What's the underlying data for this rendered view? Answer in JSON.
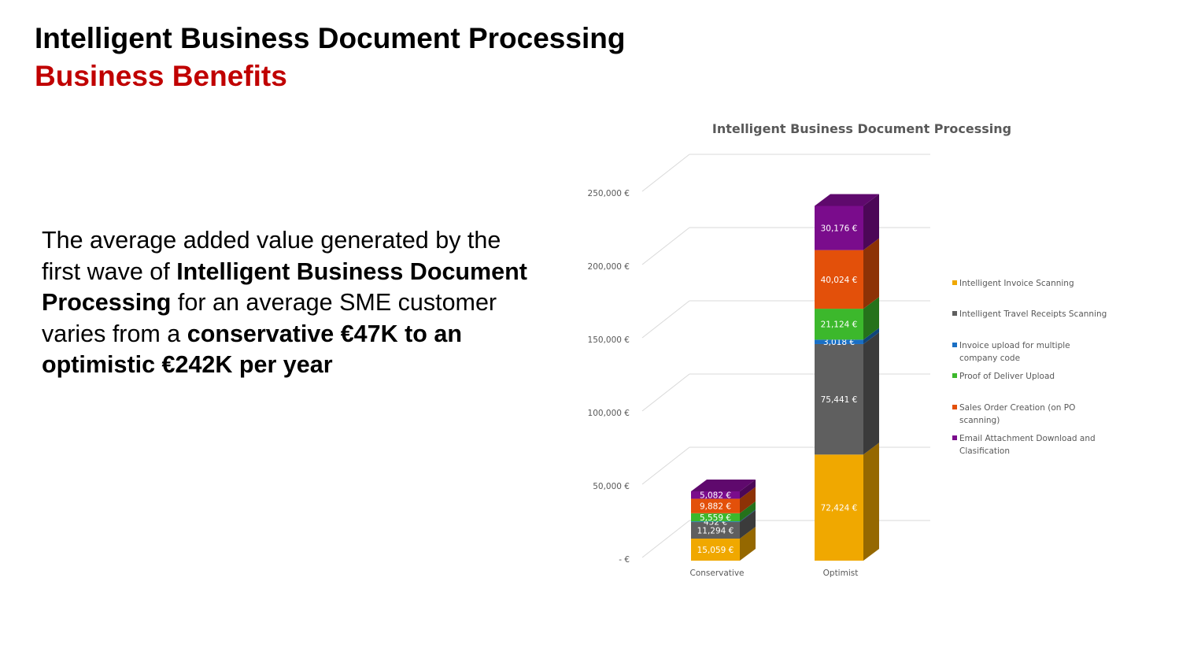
{
  "header": {
    "title": "Intelligent Business Document Processing",
    "subtitle": "Business Benefits"
  },
  "body": {
    "p1": "The average added value generated by the first wave of ",
    "b1": "Intelligent Business Document Processing",
    "p2": " for an average SME customer varies from a ",
    "b2": "conservative €47K to an optimistic €242K per year"
  },
  "colors": {
    "title": "#000000",
    "subtitle": "#c00000"
  },
  "chart_data": {
    "type": "bar",
    "stacked": true,
    "three_d": true,
    "title": "Intelligent Business Document Processing",
    "categories": [
      "Conservative",
      "Optimist"
    ],
    "ylim": [
      0,
      250000
    ],
    "yticks": [
      0,
      50000,
      100000,
      150000,
      200000,
      250000
    ],
    "ytick_labels": [
      "- €",
      "50,000 €",
      "100,000 €",
      "150,000 €",
      "200,000 €",
      "250,000 €"
    ],
    "grid": true,
    "legend_position": "right",
    "series": [
      {
        "name": "Intelligent Invoice Scanning",
        "color": "#f0a800",
        "values": [
          15059,
          72424
        ],
        "labels": [
          "15,059 €",
          "72,424 €"
        ]
      },
      {
        "name": "Intelligent Travel Receipts Scanning",
        "color": "#5f5f5f",
        "values": [
          11294,
          75441
        ],
        "labels": [
          "11,294 €",
          "75,441 €"
        ]
      },
      {
        "name": "Invoice upload for multiple company code",
        "color": "#1a6fc4",
        "values": [
          452,
          3018
        ],
        "labels": [
          "452 €",
          "3,018 €"
        ]
      },
      {
        "name": "Proof of Deliver Upload",
        "color": "#3cb82c",
        "values": [
          5559,
          21124
        ],
        "labels": [
          "5,559 €",
          "21,124 €"
        ]
      },
      {
        "name": "Sales Order Creation (on PO scanning)",
        "color": "#e3500a",
        "values": [
          9882,
          40024
        ],
        "labels": [
          "9,882 €",
          "40,024 €"
        ]
      },
      {
        "name": "Email Attachment Download and Clasification",
        "color": "#7a0c8c",
        "values": [
          5082,
          30176
        ],
        "labels": [
          "5,082 €",
          "30,176 €"
        ]
      }
    ]
  }
}
